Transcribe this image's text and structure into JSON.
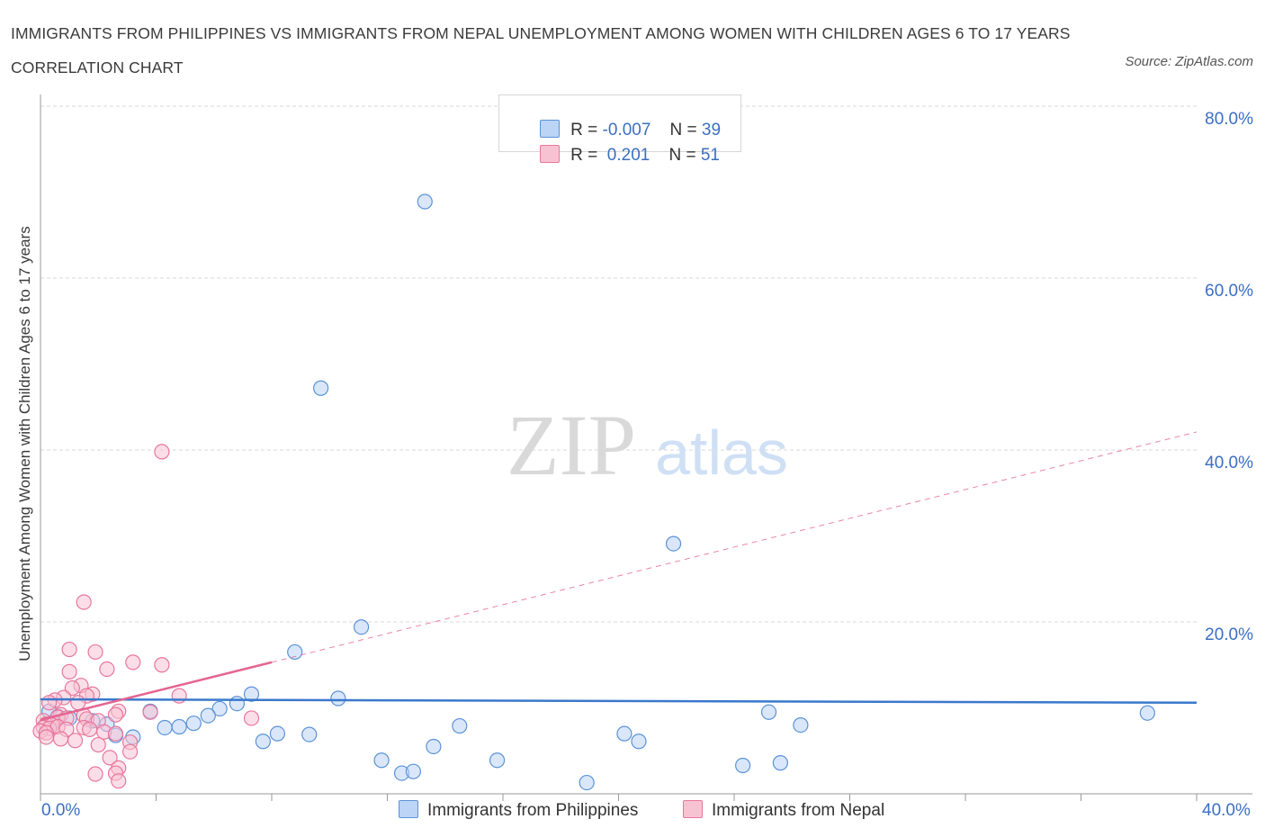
{
  "header": {
    "title": "IMMIGRANTS FROM PHILIPPINES VS IMMIGRANTS FROM NEPAL UNEMPLOYMENT AMONG WOMEN WITH CHILDREN AGES 6 TO 17 YEARS CORRELATION CHART",
    "source": "Source: ZipAtlas.com"
  },
  "watermark": {
    "zip": "ZIP",
    "atlas": "atlas"
  },
  "legend": {
    "philippines": {
      "r_label": "R =",
      "r_value": "-0.007",
      "n_label": "N =",
      "n_value": "39"
    },
    "nepal": {
      "r_label": "R =",
      "r_value": " 0.201",
      "n_label": "N =",
      "n_value": "51"
    }
  },
  "colors": {
    "philippines_fill": "#bcd4f5",
    "philippines_stroke": "#5b93d8",
    "philippines_line": "#3a78cc",
    "nepal_fill": "#f7c3d3",
    "nepal_stroke": "#e8779c",
    "nepal_line": "#e46690",
    "axis_text": "#3b6fc2",
    "grid": "#d9d9d9"
  },
  "chart_data": {
    "type": "scatter",
    "title": "IMMIGRANTS FROM PHILIPPINES VS IMMIGRANTS FROM NEPAL UNEMPLOYMENT AMONG WOMEN WITH CHILDREN AGES 6 TO 17 YEARS CORRELATION CHART",
    "xlabel": "",
    "ylabel": "Unemployment Among Women with Children Ages 6 to 17 years",
    "xlim": [
      0,
      40
    ],
    "ylim": [
      0,
      80
    ],
    "x_tick_labels": [
      "0.0%",
      "40.0%"
    ],
    "y_ticks": [
      20,
      40,
      60,
      80
    ],
    "y_tick_labels": [
      "20.0%",
      "40.0%",
      "60.0%",
      "80.0%"
    ],
    "grid": true,
    "legend_position": "bottom-center",
    "series": [
      {
        "name": "Immigrants from Philippines",
        "points": [
          [
            13.3,
            68.9
          ],
          [
            9.7,
            47.2
          ],
          [
            21.9,
            29.1
          ],
          [
            11.1,
            19.4
          ],
          [
            8.8,
            16.5
          ],
          [
            7.3,
            11.6
          ],
          [
            10.3,
            11.1
          ],
          [
            6.8,
            10.5
          ],
          [
            6.2,
            9.9
          ],
          [
            5.8,
            9.1
          ],
          [
            38.3,
            9.4
          ],
          [
            25.2,
            9.5
          ],
          [
            26.3,
            8.0
          ],
          [
            14.5,
            7.9
          ],
          [
            5.3,
            8.2
          ],
          [
            4.8,
            7.8
          ],
          [
            4.3,
            7.7
          ],
          [
            2.3,
            8.1
          ],
          [
            1.8,
            8.5
          ],
          [
            1.0,
            8.8
          ],
          [
            0.6,
            9.0
          ],
          [
            0.4,
            8.3
          ],
          [
            0.3,
            9.6
          ],
          [
            3.8,
            9.6
          ],
          [
            2.6,
            6.8
          ],
          [
            3.2,
            6.6
          ],
          [
            8.2,
            7.0
          ],
          [
            9.3,
            6.9
          ],
          [
            7.7,
            6.1
          ],
          [
            20.2,
            7.0
          ],
          [
            20.7,
            6.1
          ],
          [
            13.6,
            5.5
          ],
          [
            11.8,
            3.9
          ],
          [
            15.8,
            3.9
          ],
          [
            12.5,
            2.4
          ],
          [
            12.9,
            2.6
          ],
          [
            24.3,
            3.3
          ],
          [
            25.6,
            3.6
          ],
          [
            18.9,
            1.3
          ]
        ],
        "trend": {
          "x": [
            0,
            40
          ],
          "y": [
            11.0,
            10.6
          ]
        }
      },
      {
        "name": "Immigrants from Nepal",
        "points": [
          [
            4.2,
            39.8
          ],
          [
            1.5,
            22.3
          ],
          [
            1.0,
            16.8
          ],
          [
            1.9,
            16.5
          ],
          [
            3.2,
            15.3
          ],
          [
            4.2,
            15.0
          ],
          [
            2.3,
            14.5
          ],
          [
            1.0,
            14.2
          ],
          [
            1.4,
            12.6
          ],
          [
            1.1,
            12.3
          ],
          [
            1.8,
            11.6
          ],
          [
            1.6,
            11.4
          ],
          [
            0.8,
            11.2
          ],
          [
            0.5,
            10.9
          ],
          [
            0.3,
            10.6
          ],
          [
            4.8,
            11.4
          ],
          [
            1.3,
            10.6
          ],
          [
            2.7,
            9.6
          ],
          [
            2.6,
            9.2
          ],
          [
            3.8,
            9.5
          ],
          [
            7.3,
            8.8
          ],
          [
            0.7,
            9.2
          ],
          [
            1.5,
            9.1
          ],
          [
            0.6,
            8.9
          ],
          [
            0.9,
            8.8
          ],
          [
            1.6,
            8.7
          ],
          [
            2.0,
            8.5
          ],
          [
            0.1,
            8.5
          ],
          [
            0.2,
            8.1
          ],
          [
            0.4,
            8.0
          ],
          [
            0.1,
            7.7
          ],
          [
            0.3,
            7.6
          ],
          [
            0.6,
            7.8
          ],
          [
            0.9,
            7.5
          ],
          [
            0.0,
            7.3
          ],
          [
            0.2,
            7.1
          ],
          [
            1.5,
            7.7
          ],
          [
            1.7,
            7.5
          ],
          [
            2.2,
            7.2
          ],
          [
            2.6,
            7.0
          ],
          [
            0.2,
            6.6
          ],
          [
            0.7,
            6.4
          ],
          [
            1.2,
            6.2
          ],
          [
            3.1,
            6.0
          ],
          [
            2.0,
            5.7
          ],
          [
            3.1,
            4.9
          ],
          [
            2.4,
            4.2
          ],
          [
            2.7,
            3.0
          ],
          [
            1.9,
            2.3
          ],
          [
            2.6,
            2.4
          ],
          [
            2.7,
            1.5
          ]
        ],
        "trend": {
          "x": [
            0,
            40
          ],
          "y": [
            8.6,
            42.1
          ],
          "solid_until_x": 8.0
        }
      }
    ]
  },
  "bottom_legend": {
    "philippines_label": "Immigrants from Philippines",
    "nepal_label": "Immigrants from Nepal"
  }
}
